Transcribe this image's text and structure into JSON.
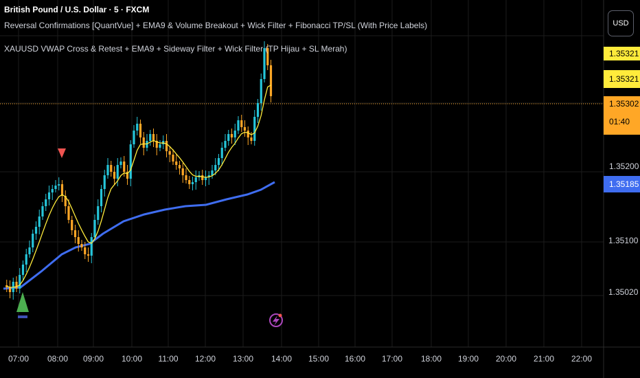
{
  "header": {
    "symbol_line": "British Pound / U.S. Dollar · 5 · FXCM",
    "indicator1": "Reversal Confirmations [QuantVue] + EMA9 & Volume Breakout + Wick Filter + Fibonacci TP/SL (With Price Labels)",
    "indicator2": "XAUUSD VWAP Cross & Retest + EMA9 + Sideway Filter + Wick Filter (TP Hijau + SL Merah)"
  },
  "currency_button": "USD",
  "price_scale": {
    "ticks": [
      "1.35100",
      "1.35020"
    ],
    "labels": {
      "tp_top": "1.35321",
      "tp_second": "1.35321",
      "last_price": "1.35302",
      "countdown": "01:40",
      "ma_value": "1.35185",
      "partial": "1.35200"
    }
  },
  "time_axis": [
    "07:00",
    "08:00",
    "09:00",
    "10:00",
    "11:00",
    "12:00",
    "13:00",
    "14:00",
    "15:00",
    "16:00",
    "17:00",
    "18:00",
    "19:00",
    "20:00",
    "21:00",
    "22:00"
  ],
  "colors": {
    "bull": "#26c6da",
    "bear": "#ffa726",
    "ema": "#ffeb3b",
    "ma": "#3f6df0",
    "sell_marker": "#ef5350",
    "buy_marker": "#4caf50",
    "price_line": "#ffa726",
    "lightning": "#ab47bc"
  },
  "markers": {
    "sell_icon": "down-triangle",
    "buy_icon": "up-triangle",
    "event_icon": "lightning-icon"
  }
}
